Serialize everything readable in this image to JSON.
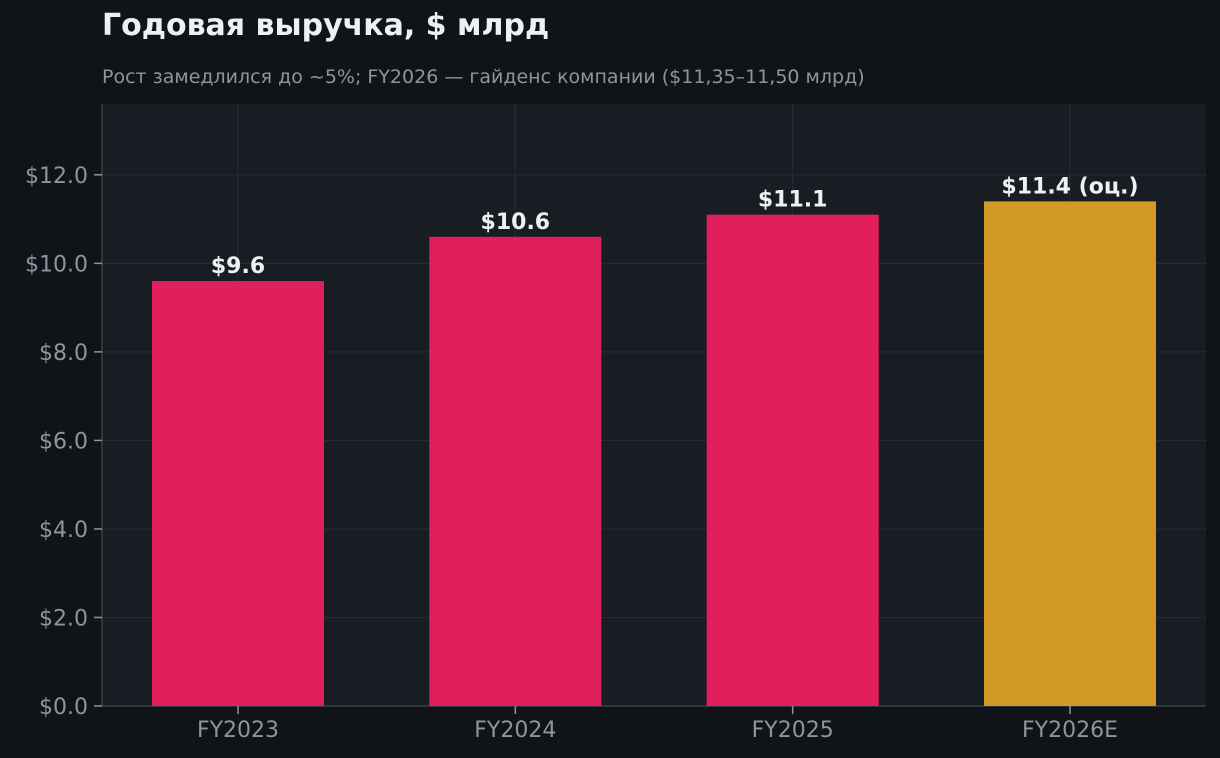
{
  "chart_data": {
    "type": "bar",
    "title": "Годовая выручка, $ млрд",
    "subtitle": "Рост замедлился до ~5%; FY2026 — гайденс компании ($11,35–11,50 млрд)",
    "categories": [
      "FY2023",
      "FY2024",
      "FY2025",
      "FY2026E"
    ],
    "values": [
      9.6,
      10.6,
      11.1,
      11.4
    ],
    "value_labels": [
      "$9.6",
      "$10.6",
      "$11.1",
      "$11.4 (оц.)"
    ],
    "bar_colors": [
      "#e01f5c",
      "#e01f5c",
      "#e01f5c",
      "#d19a24"
    ],
    "ylim": [
      0,
      13.6
    ],
    "yticks": [
      0,
      2,
      4,
      6,
      8,
      10,
      12
    ],
    "ytick_labels": [
      "$0.0",
      "$2.0",
      "$4.0",
      "$6.0",
      "$8.0",
      "$10.0",
      "$12.0"
    ],
    "xlabel": "",
    "ylabel": "",
    "grid": true
  },
  "colors": {
    "background": "#101418",
    "plot_background": "#181c23",
    "grid": "#262b33",
    "text": "#eef1f4",
    "muted_text": "#8e959e",
    "actual": "#e01f5c",
    "estimate": "#d19a24"
  }
}
